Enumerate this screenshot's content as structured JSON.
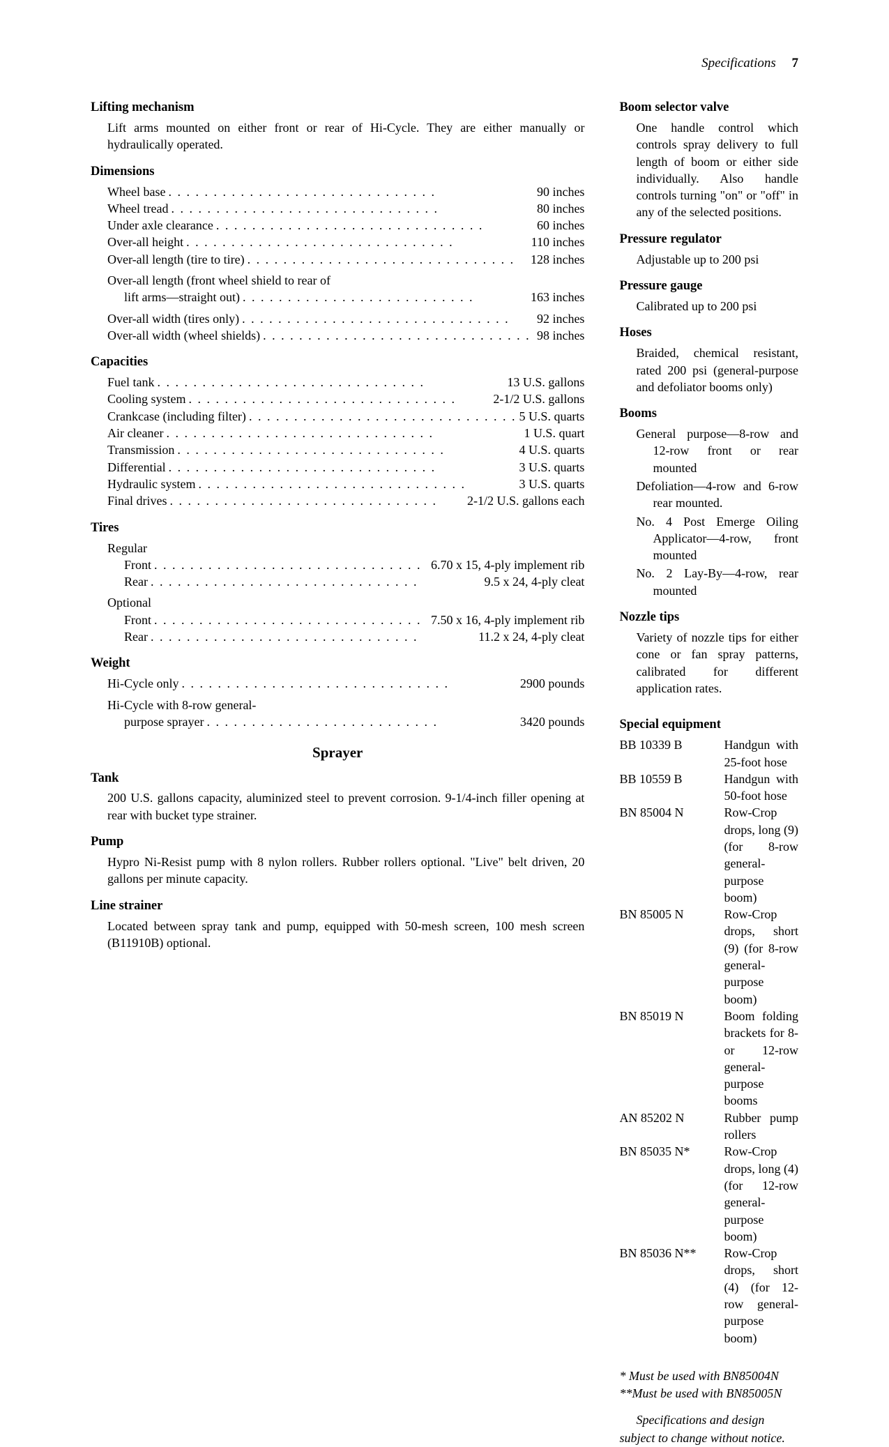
{
  "header": {
    "label": "Specifications",
    "page": "7"
  },
  "left": {
    "lifting": {
      "title": "Lifting mechanism",
      "text": "Lift arms mounted on either front or rear of Hi-Cycle. They are either manually or hydraulically operated."
    },
    "dimensions": {
      "title": "Dimensions",
      "rows": [
        {
          "label": "Wheel base",
          "value": "90 inches"
        },
        {
          "label": "Wheel tread",
          "value": "80 inches"
        },
        {
          "label": "Under axle clearance",
          "value": "60 inches"
        },
        {
          "label": "Over-all height",
          "value": "110 inches"
        },
        {
          "label": "Over-all length (tire to tire)",
          "value": "128 inches"
        }
      ],
      "wrapText": "Over-all length (front wheel shield to rear of",
      "wrapRow": {
        "label": "lift arms—straight out)",
        "value": "163 inches"
      },
      "rows2": [
        {
          "label": "Over-all width (tires only)",
          "value": "92 inches"
        },
        {
          "label": "Over-all width (wheel shields)",
          "value": "98 inches"
        }
      ]
    },
    "capacities": {
      "title": "Capacities",
      "rows": [
        {
          "label": "Fuel tank",
          "value": "13 U.S. gallons"
        },
        {
          "label": "Cooling system",
          "value": "2-1/2 U.S. gallons"
        },
        {
          "label": "Crankcase (including filter)",
          "value": "5 U.S. quarts"
        },
        {
          "label": "Air cleaner",
          "value": "1 U.S. quart"
        },
        {
          "label": "Transmission",
          "value": "4 U.S. quarts"
        },
        {
          "label": "Differential",
          "value": "3 U.S. quarts"
        },
        {
          "label": "Hydraulic system",
          "value": "3 U.S. quarts"
        },
        {
          "label": "Final drives",
          "value": "2-1/2 U.S. gallons each"
        }
      ]
    },
    "tires": {
      "title": "Tires",
      "regular": "Regular",
      "regRows": [
        {
          "label": "Front",
          "value": "6.70 x 15, 4-ply implement rib"
        },
        {
          "label": "Rear",
          "value": "9.5 x 24, 4-ply cleat"
        }
      ],
      "optional": "Optional",
      "optRows": [
        {
          "label": "Front",
          "value": "7.50 x 16, 4-ply implement rib"
        },
        {
          "label": "Rear",
          "value": "11.2 x 24, 4-ply cleat"
        }
      ]
    },
    "weight": {
      "title": "Weight",
      "rows": [
        {
          "label": "Hi-Cycle only",
          "value": "2900 pounds"
        }
      ],
      "wrapText": "Hi-Cycle with 8-row general-",
      "wrapRow": {
        "label": "purpose sprayer",
        "value": "3420 pounds"
      }
    },
    "sprayerTitle": "Sprayer",
    "tank": {
      "title": "Tank",
      "text": "200 U.S. gallons capacity, aluminized steel to prevent corrosion. 9-1/4-inch filler opening at rear with bucket type strainer."
    },
    "pump": {
      "title": "Pump",
      "text": "Hypro Ni-Resist pump with 8 nylon rollers. Rubber rollers optional. \"Live\" belt driven, 20 gallons per minute capacity."
    },
    "strainer": {
      "title": "Line strainer",
      "text": "Located between spray tank and pump, equipped with 50-mesh screen, 100 mesh screen (B11910B) optional."
    }
  },
  "right": {
    "boomSelector": {
      "title": "Boom selector valve",
      "text": "One handle control which controls spray delivery to full length of boom or either side individually. Also handle controls turning \"on\" or \"off\" in any of the selected positions."
    },
    "pressureReg": {
      "title": "Pressure regulator",
      "text": "Adjustable up to 200 psi"
    },
    "pressureGauge": {
      "title": "Pressure gauge",
      "text": "Calibrated up to 200 psi"
    },
    "hoses": {
      "title": "Hoses",
      "text": "Braided, chemical resistant, rated 200 psi (general-purpose and defoliator booms only)"
    },
    "booms": {
      "title": "Booms",
      "lines": [
        "General purpose—8-row and 12-row front or rear mounted",
        "Defoliation—4-row and 6-row rear mounted.",
        "No. 4 Post Emerge Oiling Applicator—4-row, front mounted",
        "No. 2 Lay-By—4-row, rear mounted"
      ]
    },
    "nozzle": {
      "title": "Nozzle tips",
      "text": "Variety of nozzle tips for either cone or fan spray patterns, calibrated for different application rates."
    },
    "special": {
      "title": "Special equipment",
      "rows": [
        {
          "code": "BB 10339 B",
          "desc": "Handgun with 25-foot hose"
        },
        {
          "code": "BB 10559 B",
          "desc": "Handgun with 50-foot hose"
        },
        {
          "code": "BN 85004 N",
          "desc": "Row-Crop drops, long (9) (for 8-row general-purpose boom)"
        },
        {
          "code": "BN 85005 N",
          "desc": "Row-Crop drops, short (9) (for 8-row general-purpose boom)"
        },
        {
          "code": "BN 85019 N",
          "desc": "Boom folding brackets for 8- or 12-row general-purpose booms"
        },
        {
          "code": "AN 85202 N",
          "desc": "Rubber pump rollers"
        },
        {
          "code": "BN 85035 N*",
          "desc": "Row-Crop drops, long (4) (for 12-row general-purpose boom)"
        },
        {
          "code": "BN 85036 N**",
          "desc": "Row-Crop drops, short (4) (for 12-row general-purpose boom)"
        }
      ]
    },
    "foot1": "* Must be used with BN85004N",
    "foot2": "**Must be used with BN85005N",
    "disclaimer": "Specifications and design subject to change without notice."
  }
}
